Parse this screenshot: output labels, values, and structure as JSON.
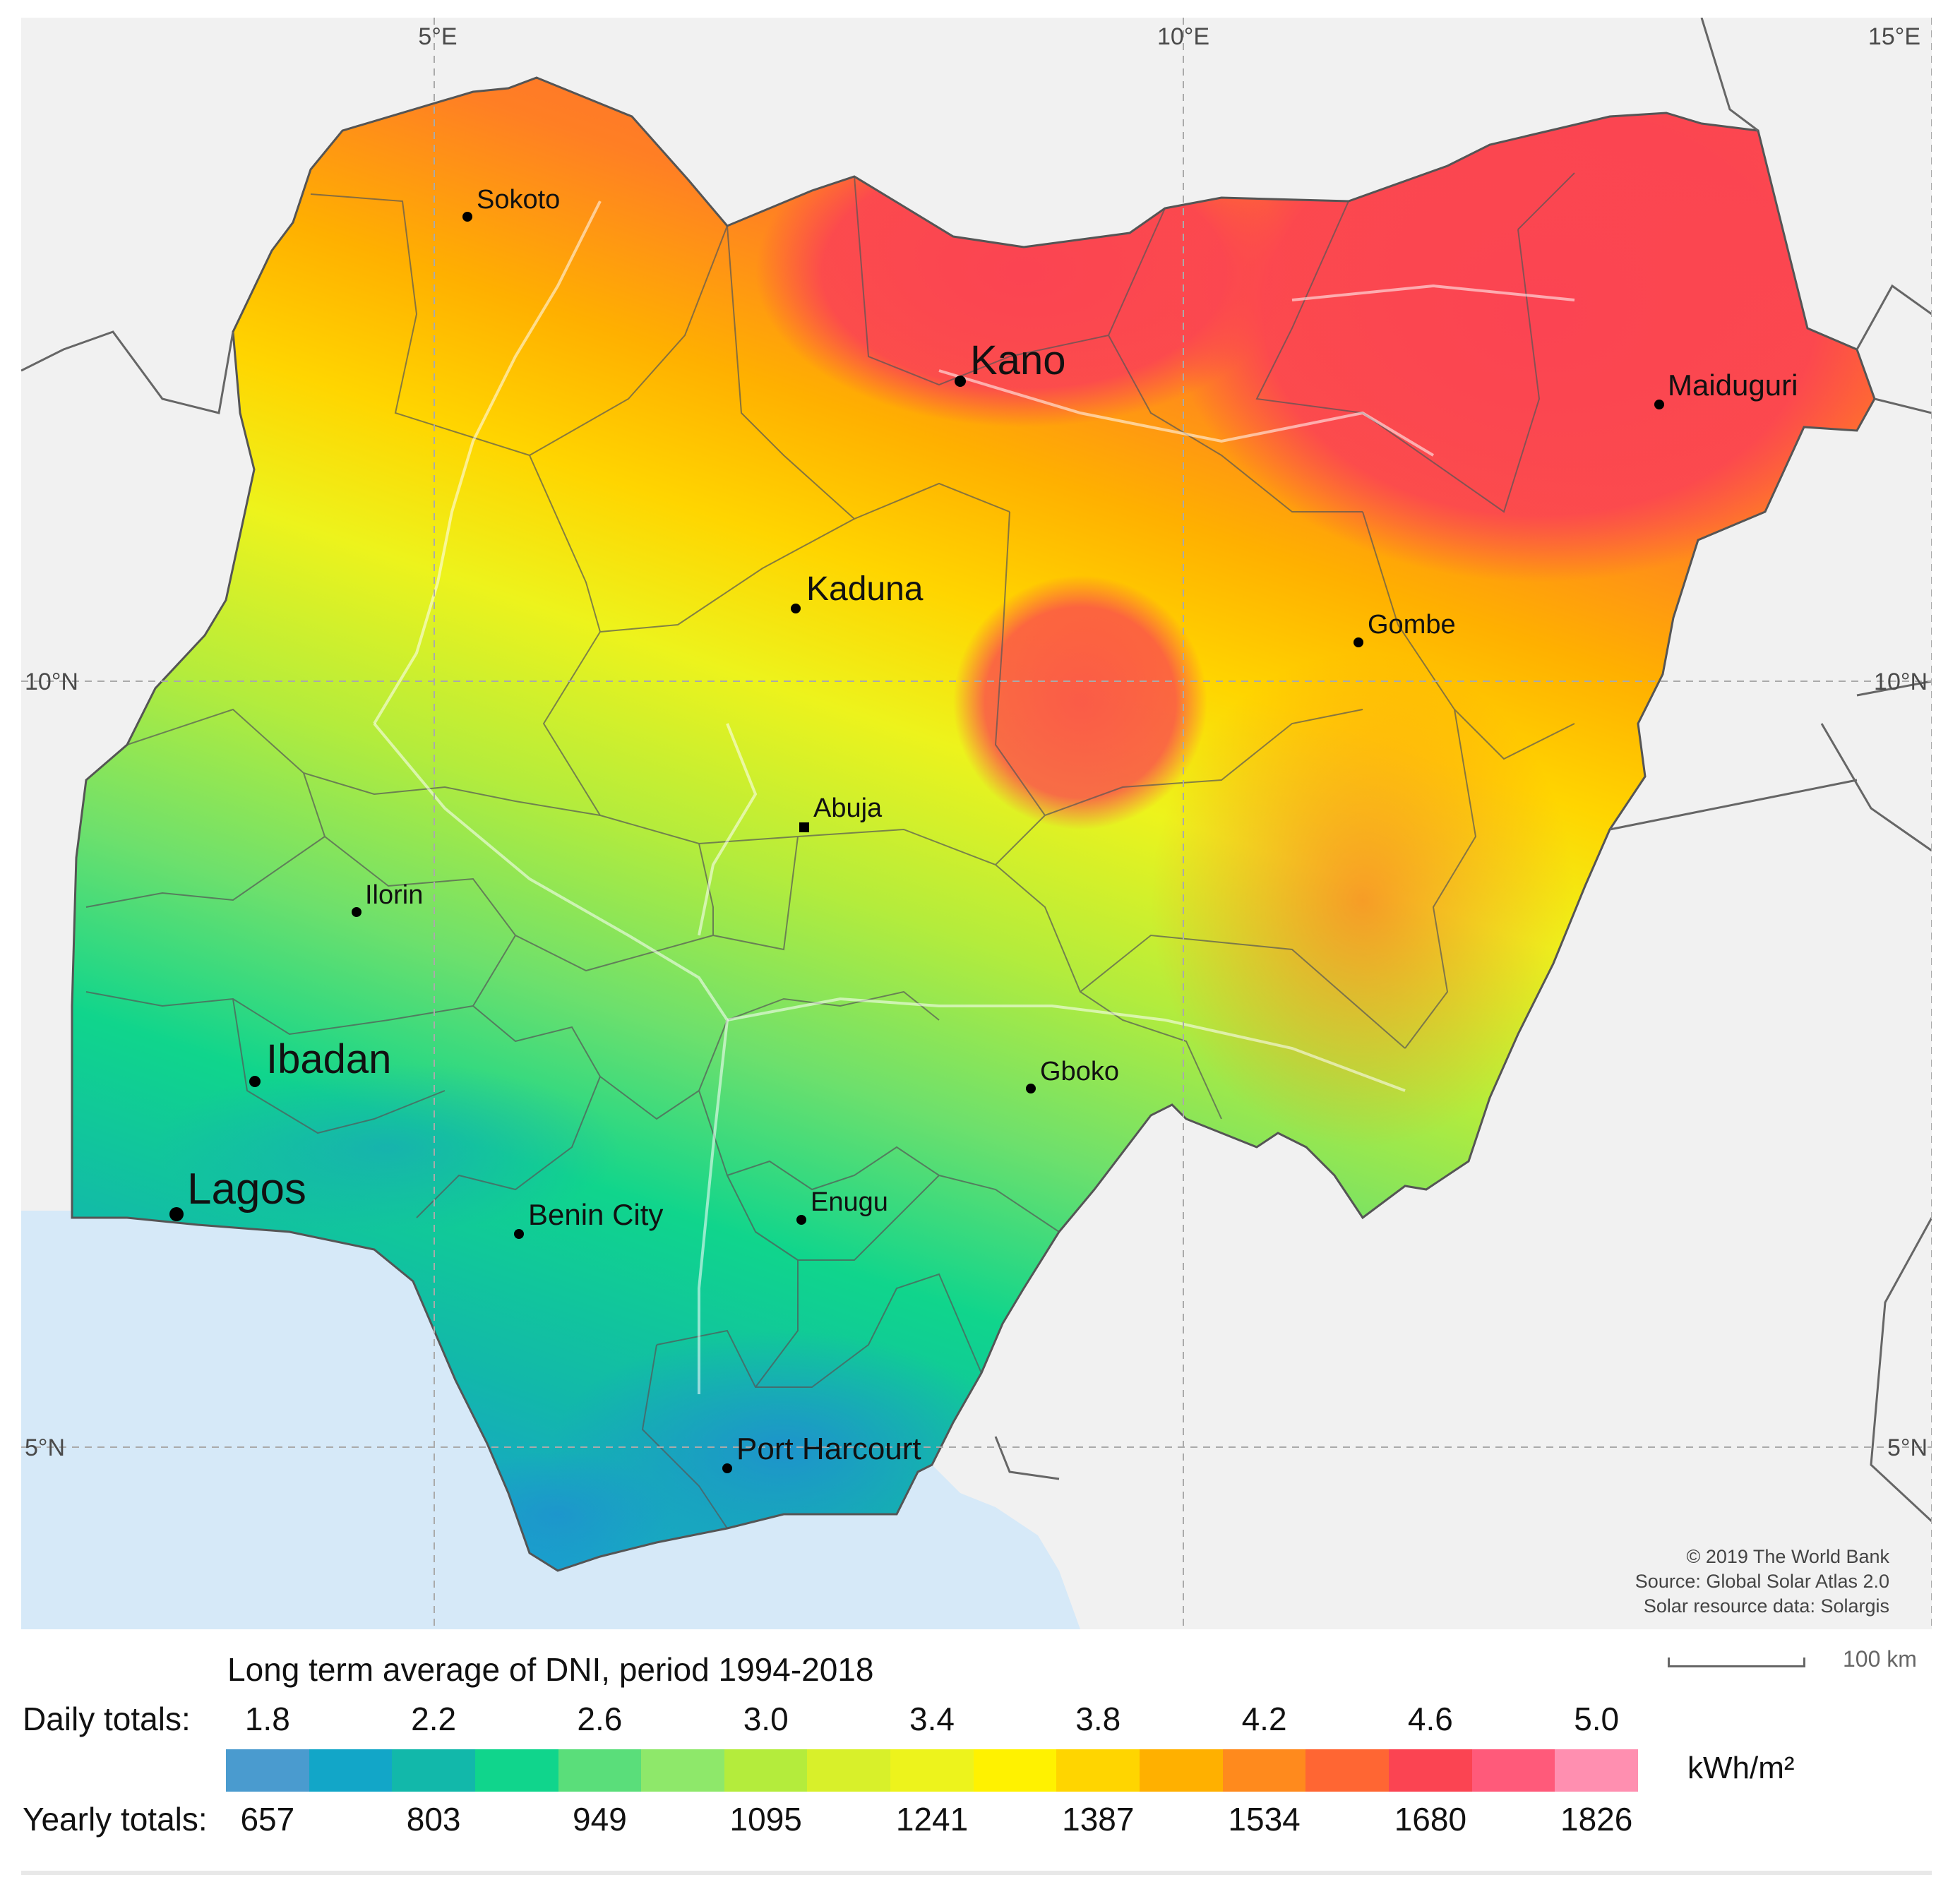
{
  "map": {
    "grid_labels": {
      "lon_5": "5°E",
      "lon_10": "10°E",
      "lon_15": "15°E",
      "lat_10_left": "10°N",
      "lat_10_right": "10°N",
      "lat_5_left": "5°N",
      "lat_5_right": "5°N"
    },
    "cities": [
      {
        "name": "Sokoto"
      },
      {
        "name": "Kano"
      },
      {
        "name": "Maiduguri"
      },
      {
        "name": "Kaduna"
      },
      {
        "name": "Gombe"
      },
      {
        "name": "Abuja"
      },
      {
        "name": "Ilorin"
      },
      {
        "name": "Ibadan"
      },
      {
        "name": "Gboko"
      },
      {
        "name": "Lagos"
      },
      {
        "name": "Benin City"
      },
      {
        "name": "Enugu"
      },
      {
        "name": "Port Harcourt"
      }
    ],
    "credits": [
      "© 2019 The World Bank",
      "Source: Global Solar Atlas 2.0",
      "Solar resource data: Solargis"
    ],
    "scale_label": "100 km"
  },
  "legend": {
    "title": "Long term average of DNI, period 1994-2018",
    "daily_label": "Daily totals:",
    "yearly_label": "Yearly totals:",
    "daily_ticks": [
      "1.8",
      "2.2",
      "2.6",
      "3.0",
      "3.4",
      "3.8",
      "4.2",
      "4.6",
      "5.0"
    ],
    "yearly_ticks": [
      "657",
      "803",
      "949",
      "1095",
      "1241",
      "1387",
      "1534",
      "1680",
      "1826"
    ],
    "unit": "kWh/m²",
    "colors": [
      "#4a9bcf",
      "#12a6c8",
      "#12b8aa",
      "#10d58c",
      "#5ade7a",
      "#8ee86a",
      "#b4ec3c",
      "#d8f02a",
      "#edf31c",
      "#fff200",
      "#ffd500",
      "#ffb000",
      "#ff8a1d",
      "#ff6633",
      "#fb4452",
      "#ff5a7a",
      "#ff8fb0"
    ]
  }
}
